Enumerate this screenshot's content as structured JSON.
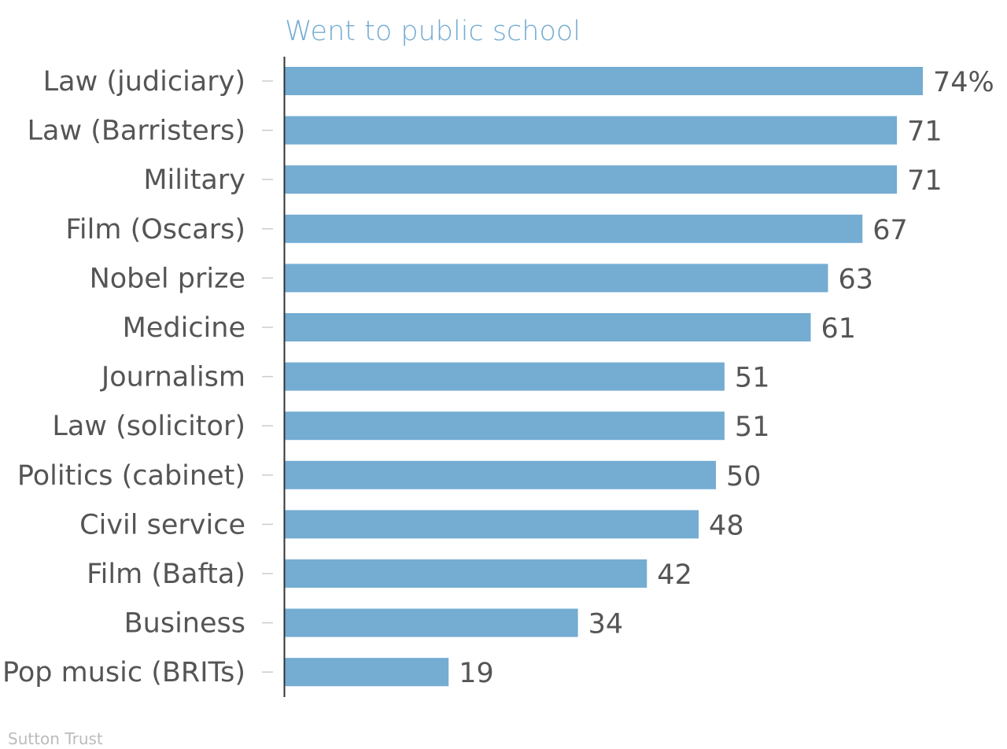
{
  "chart_data": {
    "type": "bar",
    "orientation": "horizontal",
    "categories": [
      "Law (judiciary)",
      "Law (Barristers)",
      "Military",
      "Film (Oscars)",
      "Nobel prize",
      "Medicine",
      "Journalism",
      "Law (solicitor)",
      "Politics (cabinet)",
      "Civil service",
      "Film (Bafta)",
      "Business",
      "Pop music (BRITs)"
    ],
    "series": [
      {
        "name": "Went to public school",
        "values": [
          74,
          71,
          71,
          67,
          63,
          61,
          51,
          51,
          50,
          48,
          42,
          34,
          19
        ]
      }
    ],
    "value_labels": [
      "74%",
      "71",
      "71",
      "67",
      "63",
      "61",
      "51",
      "51",
      "50",
      "48",
      "42",
      "34",
      "19"
    ],
    "source": "Sutton Trust",
    "xlim": [
      0,
      74
    ],
    "grid": false,
    "legend": "top-left",
    "colors": {
      "bar": "#74acd2",
      "series_label": "#74acd2",
      "text": "#555555",
      "axis": "#333333",
      "tick": "#cccccc",
      "source": "#bbbbbb"
    }
  }
}
